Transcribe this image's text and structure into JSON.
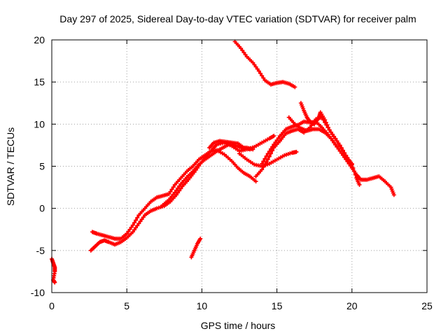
{
  "chart_data": {
    "type": "scatter",
    "title": "Day 297 of 2025, Sidereal Day-to-day VTEC variation (SDTVAR) for receiver palm",
    "xlabel": "GPS time / hours",
    "ylabel": "SDTVAR / TECUs",
    "xlim": [
      0,
      25
    ],
    "ylim": [
      -10,
      20
    ],
    "x_ticks": [
      0,
      5,
      10,
      15,
      20,
      25
    ],
    "y_ticks": [
      -10,
      -5,
      0,
      5,
      10,
      15,
      20
    ],
    "grid": true,
    "marker": "+",
    "colors": {
      "series": "#ff0000",
      "grid": "#a0a0a0",
      "axis": "#000000"
    },
    "tracks": [
      {
        "name": "t-early",
        "points": [
          [
            0.0,
            -6.0
          ],
          [
            0.1,
            -6.5
          ],
          [
            0.2,
            -7.0
          ],
          [
            0.2,
            -7.5
          ],
          [
            0.1,
            -8.5
          ],
          [
            0.2,
            -8.8
          ]
        ]
      },
      {
        "name": "t1",
        "points": [
          [
            2.6,
            -5.0
          ],
          [
            2.9,
            -4.5
          ],
          [
            3.2,
            -4.0
          ],
          [
            3.5,
            -3.8
          ],
          [
            3.8,
            -4.0
          ],
          [
            4.2,
            -4.3
          ],
          [
            4.6,
            -4.0
          ],
          [
            5.0,
            -3.5
          ],
          [
            5.4,
            -2.8
          ],
          [
            5.8,
            -1.8
          ],
          [
            6.2,
            -0.8
          ],
          [
            6.6,
            -0.3
          ],
          [
            7.0,
            0.0
          ],
          [
            7.5,
            0.3
          ],
          [
            7.9,
            0.8
          ],
          [
            8.3,
            1.6
          ],
          [
            8.7,
            2.6
          ],
          [
            9.1,
            3.4
          ],
          [
            9.5,
            4.3
          ],
          [
            9.9,
            5.3
          ],
          [
            10.3,
            6.2
          ],
          [
            10.7,
            7.0
          ],
          [
            11.0,
            7.6
          ],
          [
            11.5,
            7.8
          ],
          [
            12.0,
            7.4
          ],
          [
            12.5,
            6.8
          ],
          [
            13.0,
            7.0
          ],
          [
            13.5,
            7.3
          ],
          [
            14.0,
            7.8
          ],
          [
            14.5,
            8.3
          ],
          [
            14.8,
            8.6
          ]
        ]
      },
      {
        "name": "t2",
        "points": [
          [
            2.7,
            -2.8
          ],
          [
            3.0,
            -3.0
          ],
          [
            3.4,
            -3.2
          ],
          [
            3.8,
            -3.4
          ],
          [
            4.2,
            -3.6
          ],
          [
            4.6,
            -3.6
          ],
          [
            5.0,
            -3.0
          ],
          [
            5.4,
            -2.0
          ],
          [
            5.8,
            -0.8
          ],
          [
            6.2,
            0.0
          ],
          [
            6.6,
            0.8
          ],
          [
            7.0,
            1.3
          ],
          [
            7.4,
            1.5
          ],
          [
            7.8,
            1.7
          ],
          [
            8.2,
            2.8
          ],
          [
            8.6,
            3.6
          ],
          [
            9.0,
            4.4
          ],
          [
            9.4,
            5.0
          ],
          [
            9.8,
            5.8
          ],
          [
            10.2,
            6.3
          ],
          [
            10.6,
            6.8
          ],
          [
            11.0,
            6.9
          ],
          [
            11.5,
            6.4
          ],
          [
            12.0,
            5.6
          ],
          [
            12.4,
            4.8
          ],
          [
            12.8,
            4.2
          ],
          [
            13.2,
            3.8
          ],
          [
            13.6,
            3.2
          ]
        ]
      },
      {
        "name": "t3",
        "points": [
          [
            7.4,
            0.4
          ],
          [
            7.8,
            1.0
          ],
          [
            8.2,
            1.9
          ],
          [
            8.6,
            2.9
          ],
          [
            9.0,
            3.7
          ],
          [
            9.4,
            4.4
          ],
          [
            9.8,
            5.2
          ],
          [
            10.2,
            5.8
          ],
          [
            10.6,
            6.3
          ],
          [
            11.0,
            6.8
          ],
          [
            11.4,
            7.2
          ],
          [
            11.8,
            7.6
          ],
          [
            12.2,
            7.5
          ],
          [
            12.6,
            7.2
          ],
          [
            13.0,
            7.2
          ],
          [
            13.4,
            7.0
          ]
        ]
      },
      {
        "name": "t4",
        "points": [
          [
            12.2,
            19.8
          ],
          [
            12.6,
            19.0
          ],
          [
            13.0,
            18.0
          ],
          [
            13.4,
            17.3
          ],
          [
            13.8,
            16.3
          ],
          [
            14.2,
            15.2
          ],
          [
            14.6,
            14.7
          ],
          [
            15.0,
            14.9
          ],
          [
            15.4,
            15.0
          ],
          [
            15.8,
            14.8
          ],
          [
            16.2,
            14.4
          ]
        ]
      },
      {
        "name": "t5",
        "points": [
          [
            9.3,
            -5.8
          ],
          [
            9.5,
            -5.0
          ],
          [
            9.7,
            -4.2
          ],
          [
            9.9,
            -3.6
          ]
        ]
      },
      {
        "name": "t6",
        "points": [
          [
            12.5,
            6.5
          ],
          [
            13.0,
            5.8
          ],
          [
            13.5,
            5.2
          ],
          [
            14.0,
            5.0
          ],
          [
            14.5,
            5.3
          ],
          [
            15.0,
            5.8
          ],
          [
            15.5,
            6.3
          ],
          [
            16.0,
            6.6
          ],
          [
            16.3,
            6.7
          ]
        ]
      },
      {
        "name": "t7",
        "points": [
          [
            14.0,
            5.3
          ],
          [
            14.4,
            6.5
          ],
          [
            14.8,
            7.6
          ],
          [
            15.2,
            8.6
          ],
          [
            15.6,
            9.4
          ],
          [
            16.0,
            9.7
          ],
          [
            16.4,
            9.9
          ],
          [
            16.8,
            10.3
          ],
          [
            17.2,
            10.2
          ],
          [
            17.6,
            10.3
          ],
          [
            18.0,
            9.6
          ],
          [
            18.4,
            8.8
          ],
          [
            18.8,
            7.8
          ],
          [
            19.2,
            6.8
          ],
          [
            19.6,
            5.8
          ],
          [
            20.0,
            4.8
          ],
          [
            20.3,
            4.0
          ],
          [
            20.6,
            3.4
          ],
          [
            21.0,
            3.4
          ],
          [
            21.4,
            3.6
          ],
          [
            21.8,
            3.8
          ],
          [
            22.2,
            3.2
          ],
          [
            22.6,
            2.5
          ],
          [
            22.8,
            1.6
          ]
        ]
      },
      {
        "name": "t8",
        "points": [
          [
            13.6,
            3.8
          ],
          [
            14.0,
            4.6
          ],
          [
            14.4,
            5.8
          ],
          [
            14.8,
            7.2
          ],
          [
            15.2,
            8.0
          ],
          [
            15.6,
            8.9
          ],
          [
            16.0,
            9.2
          ],
          [
            16.4,
            9.4
          ],
          [
            16.8,
            9.0
          ],
          [
            17.2,
            9.6
          ],
          [
            17.6,
            10.6
          ],
          [
            18.0,
            10.8
          ],
          [
            18.4,
            9.6
          ],
          [
            18.8,
            8.5
          ],
          [
            19.2,
            7.5
          ],
          [
            19.6,
            6.3
          ],
          [
            20.0,
            5.2
          ],
          [
            20.3,
            3.6
          ],
          [
            20.5,
            2.8
          ]
        ]
      },
      {
        "name": "t9",
        "points": [
          [
            16.6,
            12.5
          ],
          [
            16.8,
            11.6
          ],
          [
            17.0,
            10.8
          ],
          [
            17.2,
            10.3
          ],
          [
            17.5,
            10.0
          ],
          [
            17.8,
            10.8
          ],
          [
            17.9,
            11.4
          ],
          [
            18.2,
            10.5
          ],
          [
            18.5,
            9.3
          ],
          [
            18.9,
            8.3
          ],
          [
            19.3,
            7.1
          ],
          [
            19.7,
            5.9
          ],
          [
            20.0,
            5.3
          ]
        ]
      },
      {
        "name": "t10",
        "points": [
          [
            15.8,
            10.8
          ],
          [
            16.2,
            10.0
          ],
          [
            16.6,
            9.5
          ],
          [
            17.0,
            9.2
          ],
          [
            17.4,
            9.4
          ],
          [
            17.8,
            9.4
          ],
          [
            18.2,
            9.0
          ],
          [
            18.6,
            8.3
          ],
          [
            19.0,
            7.3
          ]
        ]
      },
      {
        "name": "t11",
        "points": [
          [
            10.5,
            7.2
          ],
          [
            10.8,
            7.8
          ],
          [
            11.2,
            8.0
          ],
          [
            11.6,
            7.9
          ],
          [
            12.0,
            7.8
          ],
          [
            12.4,
            7.7
          ],
          [
            12.8,
            7.2
          ],
          [
            13.2,
            7.0
          ]
        ]
      }
    ]
  }
}
